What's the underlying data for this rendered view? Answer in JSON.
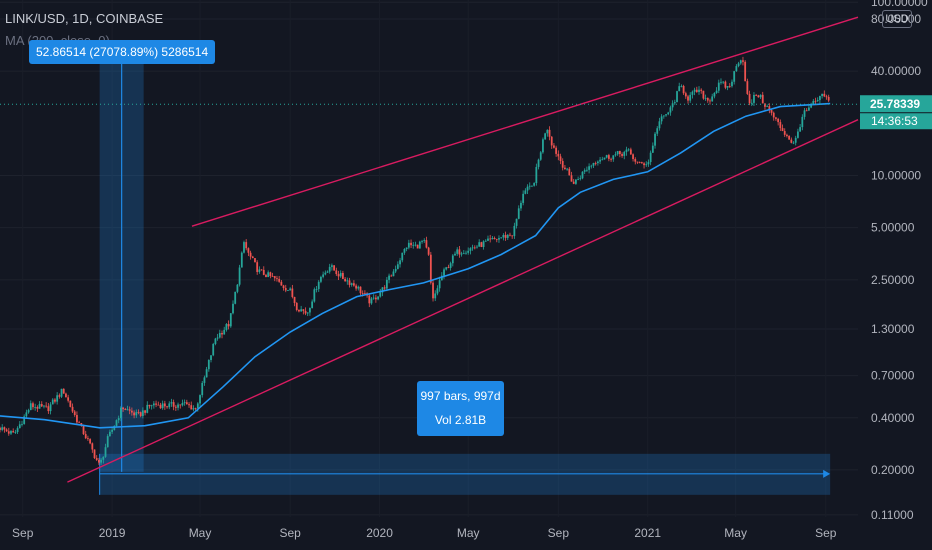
{
  "header": {
    "symbol": "LINK/USD, 1D, COINBASE",
    "ma_label": "MA (200, close, 0)",
    "currency": "USD"
  },
  "measure": {
    "top_label": "52.86514 (27078.89%) 5286514",
    "range_bars": "997 bars, 997d",
    "range_volume": "Vol 2.81B",
    "start_date": "2018-12-15",
    "end_date": "2021-09-07",
    "low": 0.195,
    "high": 53
  },
  "last_price": {
    "value": "25.78339",
    "countdown": "14:36:53"
  },
  "colors": {
    "background": "#131722",
    "up": "#26a69a",
    "down": "#ef5350",
    "ma": "#2196f3",
    "channel": "#d81b60",
    "measure": "#1e88e5",
    "text": "#b2b5be",
    "price_line": "#26a69a"
  },
  "chart_data": {
    "type": "candlestick",
    "title": "LINK/USD, 1D, COINBASE",
    "scale": "log",
    "x_ticks": [
      "Sep",
      "2019",
      "May",
      "Sep",
      "2020",
      "May",
      "Sep",
      "2021",
      "May",
      "Sep"
    ],
    "y_ticks": [
      "100.00000",
      "80.00000",
      "40.00000",
      "10.00000",
      "5.00000",
      "2.50000",
      "1.30000",
      "0.70000",
      "0.40000",
      "0.20000",
      "0.11000"
    ],
    "xlim": [
      "2018-08-01",
      "2021-10-15"
    ],
    "ylim": [
      0.107,
      103
    ],
    "price_path": [
      [
        "2018-08-01",
        0.35
      ],
      [
        "2018-08-20",
        0.32
      ],
      [
        "2018-09-12",
        0.47
      ],
      [
        "2018-10-05",
        0.45
      ],
      [
        "2018-10-26",
        0.58
      ],
      [
        "2018-11-10",
        0.42
      ],
      [
        "2018-11-28",
        0.3
      ],
      [
        "2018-12-15",
        0.21
      ],
      [
        "2018-12-26",
        0.3
      ],
      [
        "2019-01-15",
        0.46
      ],
      [
        "2019-02-05",
        0.41
      ],
      [
        "2019-02-25",
        0.48
      ],
      [
        "2019-03-20",
        0.47
      ],
      [
        "2019-04-10",
        0.48
      ],
      [
        "2019-04-25",
        0.45
      ],
      [
        "2019-05-08",
        0.7
      ],
      [
        "2019-05-22",
        1.15
      ],
      [
        "2019-06-10",
        1.4
      ],
      [
        "2019-06-20",
        2.3
      ],
      [
        "2019-06-30",
        4.1
      ],
      [
        "2019-07-05",
        3.6
      ],
      [
        "2019-07-20",
        2.8
      ],
      [
        "2019-08-10",
        2.55
      ],
      [
        "2019-09-01",
        2.15
      ],
      [
        "2019-09-10",
        1.75
      ],
      [
        "2019-09-24",
        1.6
      ],
      [
        "2019-10-10",
        2.5
      ],
      [
        "2019-10-25",
        3.0
      ],
      [
        "2019-11-10",
        2.6
      ],
      [
        "2019-11-30",
        2.3
      ],
      [
        "2019-12-20",
        1.85
      ],
      [
        "2020-01-05",
        2.2
      ],
      [
        "2020-01-20",
        2.8
      ],
      [
        "2020-02-08",
        4.0
      ],
      [
        "2020-02-20",
        3.9
      ],
      [
        "2020-03-01",
        4.2
      ],
      [
        "2020-03-08",
        3.4
      ],
      [
        "2020-03-13",
        1.85
      ],
      [
        "2020-03-25",
        2.6
      ],
      [
        "2020-04-15",
        3.6
      ],
      [
        "2020-05-05",
        3.8
      ],
      [
        "2020-05-25",
        4.1
      ],
      [
        "2020-06-15",
        4.4
      ],
      [
        "2020-07-01",
        4.6
      ],
      [
        "2020-07-15",
        8.0
      ],
      [
        "2020-07-28",
        8.6
      ],
      [
        "2020-08-08",
        14.0
      ],
      [
        "2020-08-16",
        19.5
      ],
      [
        "2020-08-24",
        15.0
      ],
      [
        "2020-09-05",
        12.0
      ],
      [
        "2020-09-22",
        9.0
      ],
      [
        "2020-10-10",
        11.0
      ],
      [
        "2020-10-25",
        12.5
      ],
      [
        "2020-11-15",
        13.0
      ],
      [
        "2020-12-05",
        13.8
      ],
      [
        "2020-12-20",
        11.5
      ],
      [
        "2021-01-02",
        12.0
      ],
      [
        "2021-01-15",
        20.0
      ],
      [
        "2021-02-01",
        24.0
      ],
      [
        "2021-02-15",
        33.0
      ],
      [
        "2021-02-25",
        28.0
      ],
      [
        "2021-03-10",
        31.0
      ],
      [
        "2021-03-25",
        27.0
      ],
      [
        "2021-04-10",
        34.0
      ],
      [
        "2021-04-22",
        32.0
      ],
      [
        "2021-05-05",
        46.0
      ],
      [
        "2021-05-10",
        49.0
      ],
      [
        "2021-05-19",
        25.0
      ],
      [
        "2021-05-30",
        30.0
      ],
      [
        "2021-06-15",
        24.0
      ],
      [
        "2021-07-01",
        19.0
      ],
      [
        "2021-07-20",
        15.0
      ],
      [
        "2021-07-31",
        22.0
      ],
      [
        "2021-08-15",
        26.0
      ],
      [
        "2021-08-30",
        29.0
      ],
      [
        "2021-09-07",
        25.78
      ]
    ],
    "ma_200": [
      [
        "2018-08-01",
        0.41
      ],
      [
        "2018-10-01",
        0.39
      ],
      [
        "2018-12-15",
        0.35
      ],
      [
        "2019-02-15",
        0.36
      ],
      [
        "2019-04-15",
        0.4
      ],
      [
        "2019-06-01",
        0.6
      ],
      [
        "2019-07-15",
        0.9
      ],
      [
        "2019-09-01",
        1.25
      ],
      [
        "2019-10-15",
        1.6
      ],
      [
        "2019-12-01",
        2.0
      ],
      [
        "2020-01-15",
        2.2
      ],
      [
        "2020-03-01",
        2.4
      ],
      [
        "2020-05-01",
        2.9
      ],
      [
        "2020-06-15",
        3.5
      ],
      [
        "2020-08-01",
        4.5
      ],
      [
        "2020-09-01",
        6.5
      ],
      [
        "2020-10-01",
        8.0
      ],
      [
        "2020-11-15",
        9.5
      ],
      [
        "2021-01-01",
        10.5
      ],
      [
        "2021-02-15",
        13.5
      ],
      [
        "2021-04-01",
        18.0
      ],
      [
        "2021-05-15",
        22.0
      ],
      [
        "2021-07-01",
        25.0
      ],
      [
        "2021-09-07",
        26.0
      ]
    ],
    "channel": {
      "upper": [
        [
          "2019-04-20",
          5.1
        ],
        [
          "2021-10-15",
          82.0
        ]
      ],
      "lower": [
        [
          "2018-11-01",
          0.17
        ],
        [
          "2021-10-15",
          21.0
        ]
      ]
    }
  }
}
